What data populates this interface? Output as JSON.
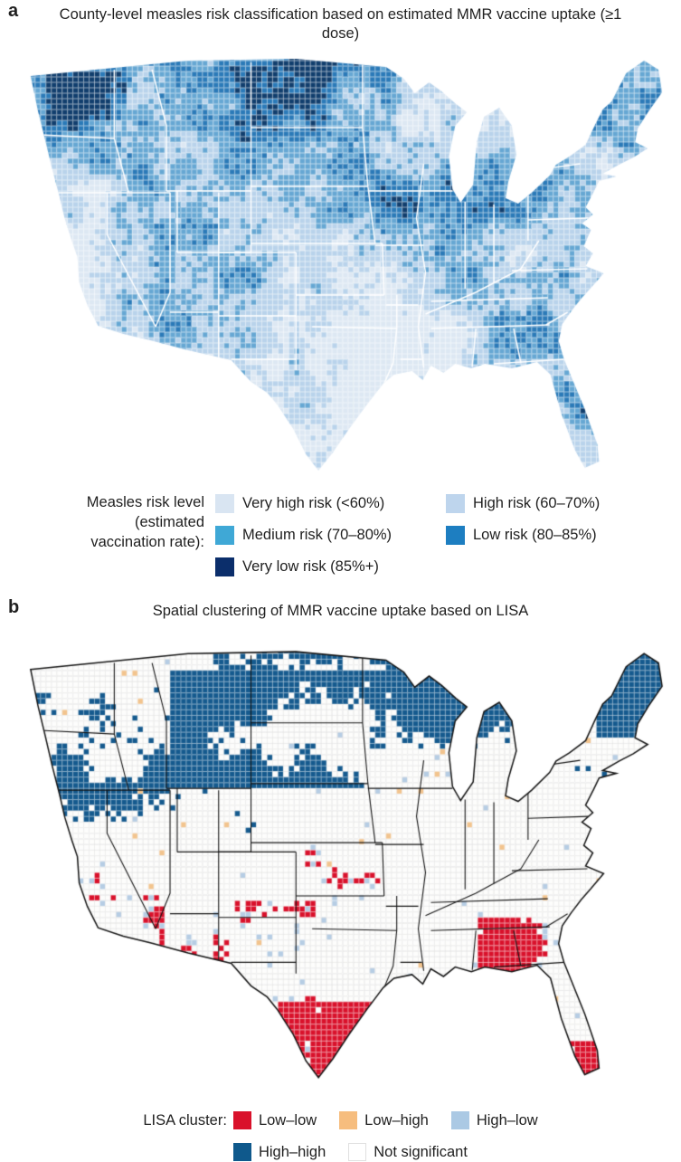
{
  "panel_a": {
    "label": "a",
    "title": "County-level measles risk classification based on estimated MMR vaccine uptake (≥1 dose)",
    "legend_label": "Measles risk level (estimated vaccination rate):",
    "legend_items": [
      {
        "name": "Very high risk (<60%)",
        "color": "#d9e5f2"
      },
      {
        "name": "High risk (60–70%)",
        "color": "#bed5ed"
      },
      {
        "name": "Medium risk (70–80%)",
        "color": "#3fa8d6"
      },
      {
        "name": "Low risk (80–85%)",
        "color": "#1d7ec1"
      },
      {
        "name": "Very low risk (85%+)",
        "color": "#0b2e6b"
      }
    ],
    "map": {
      "description": "US county-level choropleth, blue scale, white state borders",
      "palette": [
        "#dde8f3",
        "#b9d3eb",
        "#66a7d3",
        "#2b7ab8",
        "#113e6d"
      ],
      "county_border_color": "rgba(255,255,255,0.55)",
      "state_border_color": "#ffffff"
    }
  },
  "panel_b": {
    "label": "b",
    "title": "Spatial clustering of MMR vaccine uptake based on LISA",
    "legend_label": "LISA cluster:",
    "legend_items": [
      {
        "name": "Low–low",
        "color": "#d9112b"
      },
      {
        "name": "Low–high",
        "color": "#f6bd7e"
      },
      {
        "name": "High–low",
        "color": "#abc9e4"
      },
      {
        "name": "High–high",
        "color": "#0f598c"
      },
      {
        "name": "Not significant",
        "color": "#ffffff",
        "border": "#e0e0e0"
      }
    ],
    "map": {
      "description": "US county-level LISA cluster map, black state borders, red clusters in the south/southwest, dark-blue clusters in the north",
      "colors": {
        "low_low": "#d9112b",
        "low_high": "#f2c48e",
        "high_low": "#b6cde4",
        "high_high": "#155a8e",
        "not_significant": "#fdfdfc"
      },
      "county_border_color": "#e4e4e4",
      "state_border_color": "#151515"
    }
  }
}
